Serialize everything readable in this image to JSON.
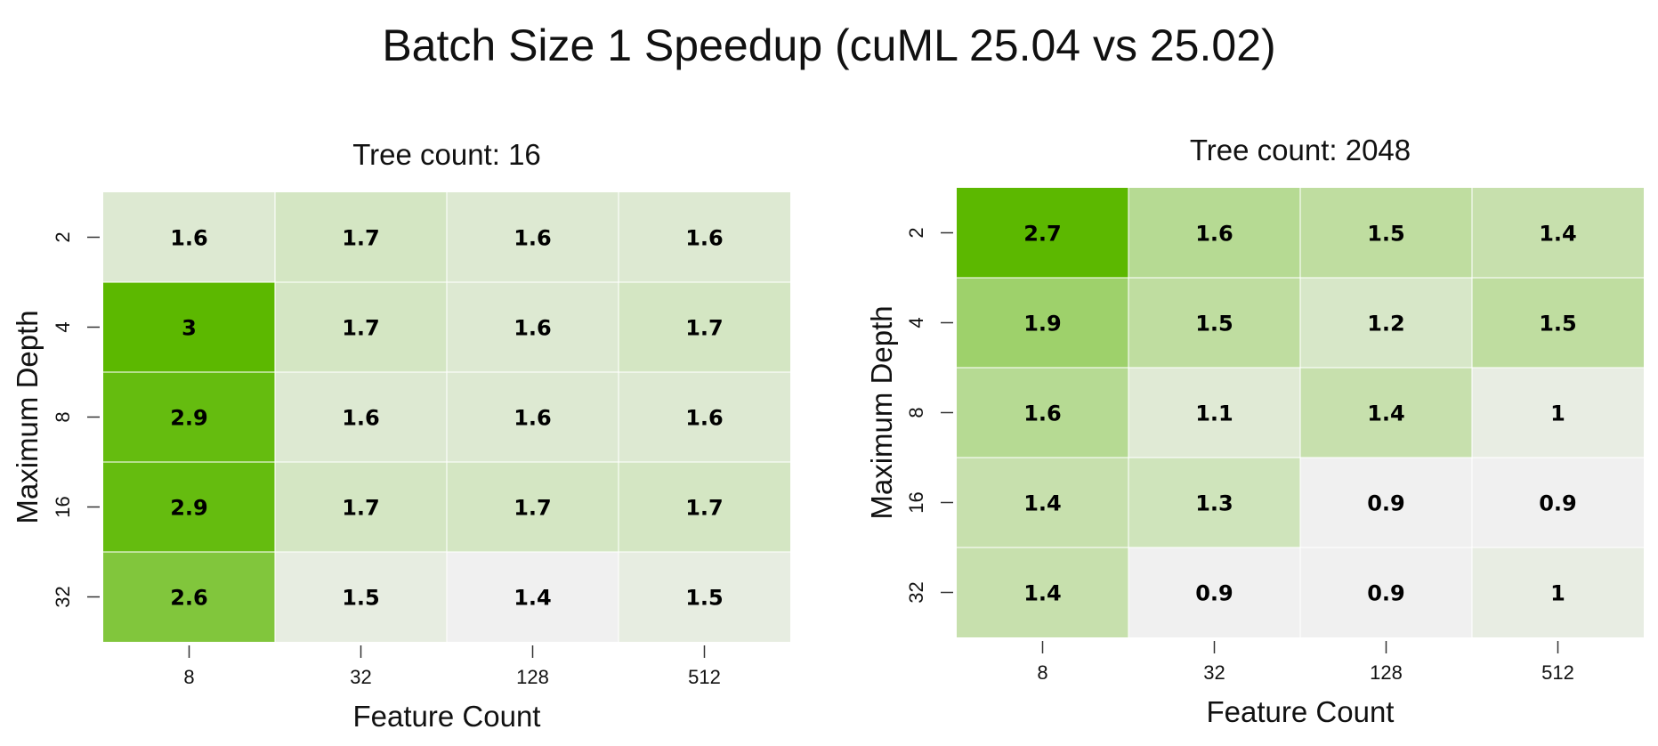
{
  "title": "Batch Size 1 Speedup (cuML 25.04 vs 25.02)",
  "colors": {
    "low": "#f0f0f0",
    "high": "#5cb800",
    "text": "#000000"
  },
  "chart_data": [
    {
      "type": "heatmap",
      "title": "Tree count: 16",
      "xlabel": "Feature Count",
      "ylabel": "Maximum Depth",
      "x_categories": [
        "8",
        "32",
        "128",
        "512"
      ],
      "y_categories": [
        "2",
        "4",
        "8",
        "16",
        "32"
      ],
      "values": [
        [
          1.6,
          1.7,
          1.6,
          1.6
        ],
        [
          3,
          1.7,
          1.6,
          1.7
        ],
        [
          2.9,
          1.6,
          1.6,
          1.6
        ],
        [
          2.9,
          1.7,
          1.7,
          1.7
        ],
        [
          2.6,
          1.5,
          1.4,
          1.5
        ]
      ]
    },
    {
      "type": "heatmap",
      "title": "Tree count: 2048",
      "xlabel": "Feature Count",
      "ylabel": "Maximum Depth",
      "x_categories": [
        "8",
        "32",
        "128",
        "512"
      ],
      "y_categories": [
        "2",
        "4",
        "8",
        "16",
        "32"
      ],
      "values": [
        [
          2.7,
          1.6,
          1.5,
          1.4
        ],
        [
          1.9,
          1.5,
          1.2,
          1.5
        ],
        [
          1.6,
          1.1,
          1.4,
          1
        ],
        [
          1.4,
          1.3,
          0.9,
          0.9
        ],
        [
          1.4,
          0.9,
          0.9,
          1
        ]
      ]
    }
  ]
}
